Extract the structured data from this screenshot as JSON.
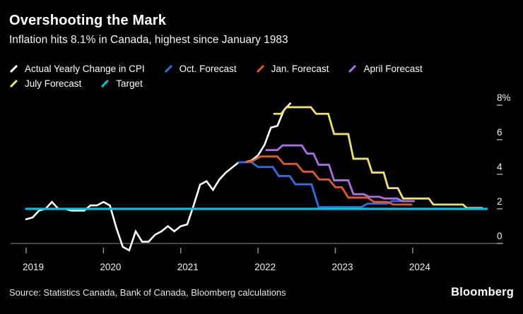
{
  "header": {
    "title": "Overshooting the Mark",
    "subtitle": "Inflation hits 8.1% in Canada, highest since January 1983"
  },
  "legend": {
    "rows": [
      [
        0,
        1,
        2,
        3
      ],
      [
        4,
        5
      ]
    ]
  },
  "chart_data": {
    "type": "line",
    "title": "Overshooting the Mark",
    "subtitle": "Inflation hits 8.1% in Canada, highest since January 1983",
    "x_unit": "months since Jan 2019",
    "xlim_months": [
      0,
      71.5
    ],
    "ylim": [
      -1,
      8.6
    ],
    "grid": "off",
    "legend_position": "top",
    "x_ticks": [
      {
        "m": 0,
        "label": "2019"
      },
      {
        "m": 12,
        "label": "2020"
      },
      {
        "m": 24,
        "label": "2021"
      },
      {
        "m": 36,
        "label": "2022"
      },
      {
        "m": 48,
        "label": "2023"
      },
      {
        "m": 60,
        "label": "2024"
      }
    ],
    "y_ticks": [
      {
        "v": 8,
        "label": "8%"
      },
      {
        "v": 6,
        "label": "6"
      },
      {
        "v": 4,
        "label": "4"
      },
      {
        "v": 2,
        "label": "2"
      },
      {
        "v": 0,
        "label": "0"
      }
    ],
    "series": [
      {
        "name": "Actual Yearly Change in CPI",
        "color": "#ffffff",
        "width": 2.6,
        "x0": 0,
        "monthly_values": [
          1.4,
          1.5,
          1.9,
          2.0,
          2.4,
          2.0,
          2.0,
          1.9,
          1.9,
          1.9,
          2.2,
          2.2,
          2.4,
          2.2,
          0.9,
          -0.2,
          -0.4,
          0.7,
          0.1,
          0.1,
          0.5,
          0.7,
          1.0,
          0.7,
          1.0,
          1.1,
          2.2,
          3.4,
          3.6,
          3.1,
          3.7,
          4.1,
          4.4,
          4.7,
          4.7,
          4.8,
          5.1,
          5.7,
          6.7,
          6.8,
          7.7,
          8.1
        ]
      },
      {
        "name": "Oct. Forecast",
        "color": "#2e6de6",
        "width": 2.8,
        "points": [
          [
            33,
            4.7
          ],
          [
            35,
            4.7
          ],
          [
            36,
            4.42
          ],
          [
            38.3,
            4.42
          ],
          [
            39.2,
            3.9
          ],
          [
            40.9,
            3.9
          ],
          [
            41.8,
            3.42
          ],
          [
            44.3,
            3.42
          ],
          [
            45.4,
            2.1
          ],
          [
            52,
            2.1
          ],
          [
            53,
            2.3
          ],
          [
            56,
            2.3
          ],
          [
            56.8,
            2.45
          ],
          [
            59.8,
            2.45
          ]
        ]
      },
      {
        "name": "Jan. Forecast",
        "color": "#e2592b",
        "width": 2.8,
        "points": [
          [
            34.2,
            4.7
          ],
          [
            35.2,
            4.78
          ],
          [
            36.4,
            5.03
          ],
          [
            39,
            5.03
          ],
          [
            40,
            4.6
          ],
          [
            42,
            4.6
          ],
          [
            43,
            4.15
          ],
          [
            44.5,
            4.15
          ],
          [
            45.5,
            3.7
          ],
          [
            47,
            3.7
          ],
          [
            48,
            3.25
          ],
          [
            49,
            3.25
          ],
          [
            50,
            2.65
          ],
          [
            53,
            2.65
          ],
          [
            54,
            2.4
          ],
          [
            56,
            2.4
          ],
          [
            57,
            2.25
          ],
          [
            59.8,
            2.25
          ]
        ]
      },
      {
        "name": "April Forecast",
        "color": "#ae6fe3",
        "width": 2.8,
        "points": [
          [
            37.3,
            5.4
          ],
          [
            39,
            5.4
          ],
          [
            39.8,
            5.67
          ],
          [
            42.8,
            5.67
          ],
          [
            43.6,
            5.2
          ],
          [
            44.6,
            5.2
          ],
          [
            45.4,
            4.55
          ],
          [
            47,
            4.55
          ],
          [
            47.8,
            3.65
          ],
          [
            50,
            3.65
          ],
          [
            50.8,
            2.85
          ],
          [
            52.4,
            2.85
          ],
          [
            53.2,
            2.7
          ],
          [
            54.8,
            2.7
          ],
          [
            55.6,
            2.6
          ],
          [
            57.6,
            2.6
          ],
          [
            58.4,
            2.45
          ],
          [
            60.2,
            2.45
          ]
        ]
      },
      {
        "name": "July Forecast",
        "color": "#efe263",
        "width": 2.8,
        "points": [
          [
            38.5,
            7.5
          ],
          [
            39.6,
            7.5
          ],
          [
            40.4,
            7.88
          ],
          [
            44.2,
            7.88
          ],
          [
            45,
            7.5
          ],
          [
            46.9,
            7.5
          ],
          [
            47.8,
            6.33
          ],
          [
            50,
            6.33
          ],
          [
            50.8,
            4.9
          ],
          [
            53,
            4.9
          ],
          [
            53.7,
            4.1
          ],
          [
            55.5,
            4.1
          ],
          [
            56.2,
            3.2
          ],
          [
            57.7,
            3.2
          ],
          [
            58.5,
            2.6
          ],
          [
            62.5,
            2.6
          ],
          [
            63.2,
            2.25
          ],
          [
            67.8,
            2.25
          ],
          [
            68.4,
            2.05
          ],
          [
            70.8,
            2.05
          ]
        ]
      },
      {
        "name": "Target",
        "color": "#00c4dd",
        "width": 3.2,
        "points": [
          [
            0,
            2
          ],
          [
            71.5,
            2
          ]
        ]
      }
    ]
  },
  "footer": {
    "source": "Source: Statistics Canada, Bank of Canada, Bloomberg calculations",
    "logo": "Bloomberg"
  }
}
